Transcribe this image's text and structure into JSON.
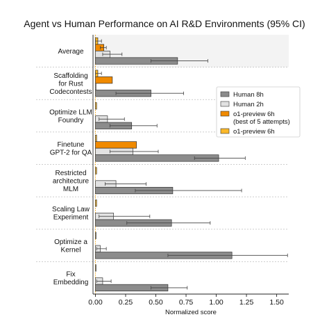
{
  "chart_data": {
    "type": "bar",
    "orientation": "horizontal",
    "title": "Agent vs Human Performance on AI R&D Environments (95% CI)",
    "xlabel": "Normalized score",
    "ylabel": "",
    "xlim": [
      -0.02,
      1.6
    ],
    "xticks": [
      0.0,
      0.25,
      0.5,
      0.75,
      1.0,
      1.25,
      1.5
    ],
    "xtick_labels": [
      "0.00",
      "0.25",
      "0.50",
      "0.75",
      "1.00",
      "1.25",
      "1.50"
    ],
    "grid": false,
    "legend_position": "right",
    "categories": [
      [
        "Average"
      ],
      [
        "Scaffolding",
        "for Rust",
        "Codecontests"
      ],
      [
        "Optimize LLM",
        "Foundry"
      ],
      [
        "Finetune",
        "GPT-2 for QA"
      ],
      [
        "Restricted",
        "architecture",
        "MLM"
      ],
      [
        "Scaling Law",
        "Experiment"
      ],
      [
        "Optimize a",
        "Kernel"
      ],
      [
        "Fix",
        "Embedding"
      ]
    ],
    "highlighted_category": "Average",
    "series": [
      {
        "name": "o1-preview 6h",
        "color": "#fbb829",
        "values": [
          0.02,
          0.02,
          0.01,
          0.01,
          0.01,
          0.01,
          0.005,
          0.005
        ],
        "ci_low": [
          0.0,
          0.0,
          null,
          null,
          null,
          null,
          null,
          null
        ],
        "ci_high": [
          0.05,
          0.05,
          null,
          null,
          null,
          null,
          null,
          null
        ]
      },
      {
        "name": "o1-preview 6h\n(best of 5 attempts)",
        "color": "#f08a00",
        "values": [
          0.07,
          0.14,
          null,
          0.34,
          null,
          null,
          null,
          null
        ],
        "ci_low": [
          0.04,
          null,
          null,
          null,
          null,
          null,
          null,
          null
        ],
        "ci_high": [
          0.09,
          null,
          null,
          null,
          null,
          null,
          null,
          null
        ]
      },
      {
        "name": "Human 2h",
        "color": "#e2e2e2",
        "values": [
          0.12,
          0.0,
          0.1,
          0.31,
          0.17,
          0.15,
          0.04,
          0.06
        ],
        "ci_low": [
          0.06,
          null,
          0.03,
          0.12,
          0.08,
          0.03,
          0.01,
          0.01
        ],
        "ci_high": [
          0.22,
          null,
          0.24,
          0.52,
          0.42,
          0.45,
          0.09,
          0.13
        ]
      },
      {
        "name": "Human 8h",
        "color": "#8c8c8c",
        "values": [
          0.68,
          0.46,
          0.3,
          1.02,
          0.64,
          0.63,
          1.13,
          0.6
        ],
        "ci_low": [
          0.46,
          0.17,
          0.12,
          0.82,
          0.33,
          0.26,
          0.6,
          0.46
        ],
        "ci_high": [
          0.93,
          0.73,
          0.51,
          1.24,
          1.21,
          0.95,
          1.59,
          0.76
        ]
      }
    ],
    "legend_order": [
      "Human 8h",
      "Human 2h",
      "o1-preview 6h\n(best of 5 attempts)",
      "o1-preview 6h"
    ]
  }
}
